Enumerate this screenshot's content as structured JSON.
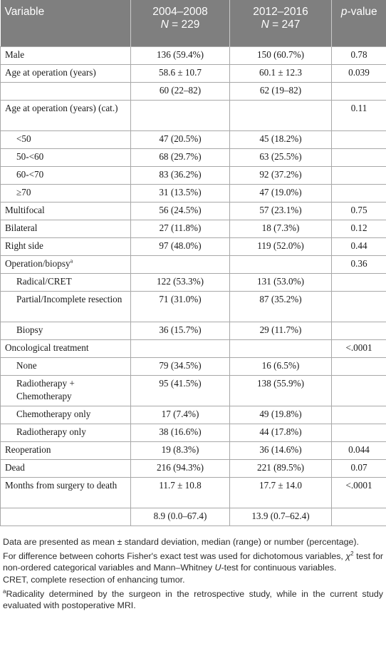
{
  "header": {
    "variable": "Variable",
    "cohort1_years": "2004–2008",
    "cohort1_n_prefix": "N",
    "cohort1_n_value": " = 229",
    "cohort2_years": "2012–2016",
    "cohort2_n_prefix": "N",
    "cohort2_n_value": " = 247",
    "pvalue_p": "p",
    "pvalue_rest": "-value"
  },
  "rows": [
    {
      "label": "Male",
      "c1": "136 (59.4%)",
      "c2": "150 (60.7%)",
      "p": "0.78"
    },
    {
      "label": "Age at operation (years)",
      "c1": "58.6 ± 10.7",
      "c2": "60.1 ± 12.3",
      "p": "0.039"
    },
    {
      "label": "",
      "c1": "60 (22–82)",
      "c2": "62 (19–82)",
      "p": ""
    },
    {
      "label": "Age at operation (years) (cat.)",
      "c1": "",
      "c2": "",
      "p": "0.11"
    },
    {
      "label": "<50",
      "c1": "47 (20.5%)",
      "c2": "45 (18.2%)",
      "p": ""
    },
    {
      "label": "50-<60",
      "c1": "68 (29.7%)",
      "c2": "63 (25.5%)",
      "p": ""
    },
    {
      "label": "60-<70",
      "c1": "83 (36.2%)",
      "c2": "92 (37.2%)",
      "p": ""
    },
    {
      "label": "≥70",
      "c1": "31 (13.5%)",
      "c2": "47 (19.0%)",
      "p": ""
    },
    {
      "label": "Multifocal",
      "c1": "56 (24.5%)",
      "c2": "57 (23.1%)",
      "p": "0.75"
    },
    {
      "label": "Bilateral",
      "c1": "27 (11.8%)",
      "c2": "18 (7.3%)",
      "p": "0.12"
    },
    {
      "label": "Right side",
      "c1": "97 (48.0%)",
      "c2": "119 (52.0%)",
      "p": "0.44"
    },
    {
      "label": "Operation/biopsy",
      "sup": "a",
      "c1": "",
      "c2": "",
      "p": "0.36"
    },
    {
      "label": "Radical/CRET",
      "c1": "122 (53.3%)",
      "c2": "131 (53.0%)",
      "p": ""
    },
    {
      "label": "Partial/Incomplete resection",
      "c1": "71 (31.0%)",
      "c2": "87 (35.2%)",
      "p": ""
    },
    {
      "label": "Biopsy",
      "c1": "36 (15.7%)",
      "c2": "29 (11.7%)",
      "p": ""
    },
    {
      "label": "Oncological treatment",
      "c1": "",
      "c2": "",
      "p": "<.0001"
    },
    {
      "label": "None",
      "c1": "79 (34.5%)",
      "c2": "16 (6.5%)",
      "p": ""
    },
    {
      "label": "Radiotherapy + Chemotherapy",
      "c1": "95 (41.5%)",
      "c2": "138 (55.9%)",
      "p": ""
    },
    {
      "label": "Chemotherapy only",
      "c1": "17 (7.4%)",
      "c2": "49 (19.8%)",
      "p": ""
    },
    {
      "label": "Radiotherapy only",
      "c1": "38 (16.6%)",
      "c2": "44 (17.8%)",
      "p": ""
    },
    {
      "label": "Reoperation",
      "c1": "19 (8.3%)",
      "c2": "36 (14.6%)",
      "p": "0.044"
    },
    {
      "label": "Dead",
      "c1": "216 (94.3%)",
      "c2": "221 (89.5%)",
      "p": "0.07"
    },
    {
      "label": "Months from surgery to death",
      "c1": "11.7 ± 10.8",
      "c2": "17.7 ± 14.0",
      "p": "<.0001"
    },
    {
      "label": "",
      "c1": "8.9 (0.0–67.4)",
      "c2": "13.9 (0.7–62.4)",
      "p": ""
    }
  ],
  "footnotes": {
    "f1": "Data are presented as mean ± standard deviation, median (range) or number (percentage).",
    "f2_a": "For difference between cohorts Fisher's exact test was used for dichotomous variables, ",
    "f2_chi": "χ",
    "f2_sup": "2",
    "f2_b": " test for non-ordered categorical variables and Mann–Whitney ",
    "f2_u": "U",
    "f2_c": "-test for continuous variables.",
    "f3": "CRET, complete resection of enhancing tumor.",
    "f4_sup": "a",
    "f4": "Radicality determined by the surgeon in the retrospective study, while in the current study evaluated with postoperative MRI."
  }
}
